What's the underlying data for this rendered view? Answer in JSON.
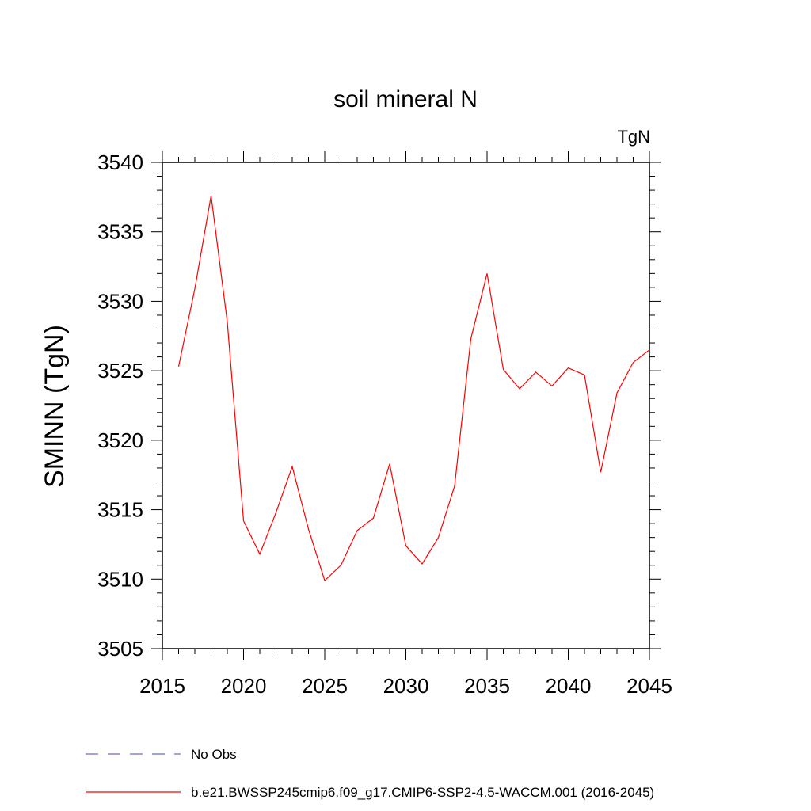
{
  "chart_data": {
    "type": "line",
    "title": "soil mineral N",
    "units": "TgN",
    "xlabel": "",
    "ylabel": "SMINN  (TgN)",
    "xlim": [
      2015,
      2045
    ],
    "ylim": [
      3505,
      3540
    ],
    "xticks": [
      2015,
      2020,
      2025,
      2030,
      2035,
      2040,
      2045
    ],
    "yticks": [
      3505,
      3510,
      3515,
      3520,
      3525,
      3530,
      3535,
      3540
    ],
    "grid": false,
    "series": [
      {
        "name": "b.e21.BWSSP245cmip6.f09_g17.CMIP6-SSP2-4.5-WACCM.001 (2016-2045)",
        "color": "#ff0000",
        "x": [
          2016,
          2017,
          2018,
          2019,
          2020,
          2021,
          2022,
          2023,
          2024,
          2025,
          2026,
          2027,
          2028,
          2029,
          2030,
          2031,
          2032,
          2033,
          2034,
          2035,
          2036,
          2037,
          2038,
          2039,
          2040,
          2041,
          2042,
          2043,
          2044,
          2045
        ],
        "values": [
          3525.3,
          3530.9,
          3537.6,
          3528.5,
          3514.2,
          3511.8,
          3514.8,
          3518.1,
          3513.6,
          3509.9,
          3511.0,
          3513.5,
          3514.4,
          3518.3,
          3512.4,
          3511.1,
          3513.0,
          3516.7,
          3527.3,
          3532.0,
          3525.1,
          3523.7,
          3524.9,
          3523.9,
          3525.2,
          3524.7,
          3517.7,
          3523.4,
          3525.6,
          3526.5
        ]
      }
    ],
    "legend": [
      {
        "label": "No Obs",
        "style": "dashed",
        "color": "#6a6acd"
      },
      {
        "label": "b.e21.BWSSP245cmip6.f09_g17.CMIP6-SSP2-4.5-WACCM.001 (2016-2045)",
        "style": "solid",
        "color": "#ff0000"
      }
    ],
    "legend_position": "bottom"
  }
}
